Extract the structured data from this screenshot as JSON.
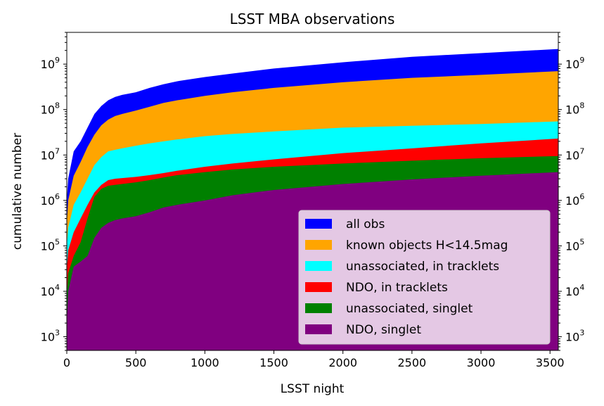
{
  "chart_data": {
    "type": "area",
    "title": "LSST MBA observations",
    "xlabel": "LSST night",
    "ylabel": "cumulative number",
    "xlim": [
      0,
      3560
    ],
    "ylim": [
      500,
      5000000000
    ],
    "yscale": "log",
    "x_ticks": [
      0,
      500,
      1000,
      1500,
      2000,
      2500,
      3000,
      3500
    ],
    "y_ticks": [
      {
        "value": 1000,
        "base": "10",
        "exp": "3"
      },
      {
        "value": 10000,
        "base": "10",
        "exp": "4"
      },
      {
        "value": 100000,
        "base": "10",
        "exp": "5"
      },
      {
        "value": 1000000,
        "base": "10",
        "exp": "6"
      },
      {
        "value": 10000000,
        "base": "10",
        "exp": "7"
      },
      {
        "value": 100000000,
        "base": "10",
        "exp": "8"
      },
      {
        "value": 1000000000,
        "base": "10",
        "exp": "9"
      }
    ],
    "legend_position": "lower-right",
    "x": [
      0,
      10,
      50,
      100,
      150,
      200,
      250,
      300,
      350,
      400,
      500,
      600,
      700,
      800,
      1000,
      1200,
      1500,
      2000,
      2500,
      3000,
      3560
    ],
    "series": [
      {
        "name": "all obs",
        "color": "#0000ff",
        "values": [
          1000000,
          3000000,
          12000000,
          20000000,
          40000000,
          80000000,
          120000000,
          160000000,
          190000000,
          210000000,
          240000000,
          300000000,
          360000000,
          420000000,
          520000000,
          620000000,
          800000000,
          1100000000,
          1450000000,
          1750000000,
          2150000000
        ]
      },
      {
        "name": "known objects H<14.5mag",
        "color": "#ffa500",
        "values": [
          300000,
          1000000,
          3500000,
          7000000,
          15000000,
          28000000,
          45000000,
          60000000,
          72000000,
          80000000,
          95000000,
          115000000,
          140000000,
          160000000,
          200000000,
          240000000,
          300000000,
          400000000,
          500000000,
          580000000,
          700000000
        ]
      },
      {
        "name": "unassociated, in tracklets",
        "color": "#00ffff",
        "values": [
          100000,
          250000,
          800000,
          1500000,
          3000000,
          6000000,
          9000000,
          12000000,
          13000000,
          14000000,
          16000000,
          18000000,
          20000000,
          22000000,
          26000000,
          29000000,
          33000000,
          40000000,
          44000000,
          48000000,
          55000000
        ]
      },
      {
        "name": "NDO, in tracklets",
        "color": "#ff0000",
        "values": [
          30000,
          80000,
          200000,
          400000,
          800000,
          1500000,
          2200000,
          2800000,
          3000000,
          3100000,
          3300000,
          3600000,
          4000000,
          4500000,
          5500000,
          6500000,
          8000000,
          11000000,
          14000000,
          18000000,
          23000000
        ]
      },
      {
        "name": "unassociated, singlet",
        "color": "#008000",
        "values": [
          8000,
          25000,
          60000,
          120000,
          400000,
          1200000,
          1800000,
          2100000,
          2200000,
          2300000,
          2500000,
          2800000,
          3200000,
          3600000,
          4200000,
          4800000,
          5500000,
          6500000,
          7500000,
          8500000,
          9500000
        ]
      },
      {
        "name": "NDO, singlet",
        "color": "#800080",
        "values": [
          2000,
          10000,
          35000,
          45000,
          60000,
          150000,
          250000,
          320000,
          370000,
          400000,
          450000,
          550000,
          700000,
          800000,
          1000000,
          1300000,
          1700000,
          2300000,
          2900000,
          3500000,
          4200000
        ]
      }
    ]
  }
}
